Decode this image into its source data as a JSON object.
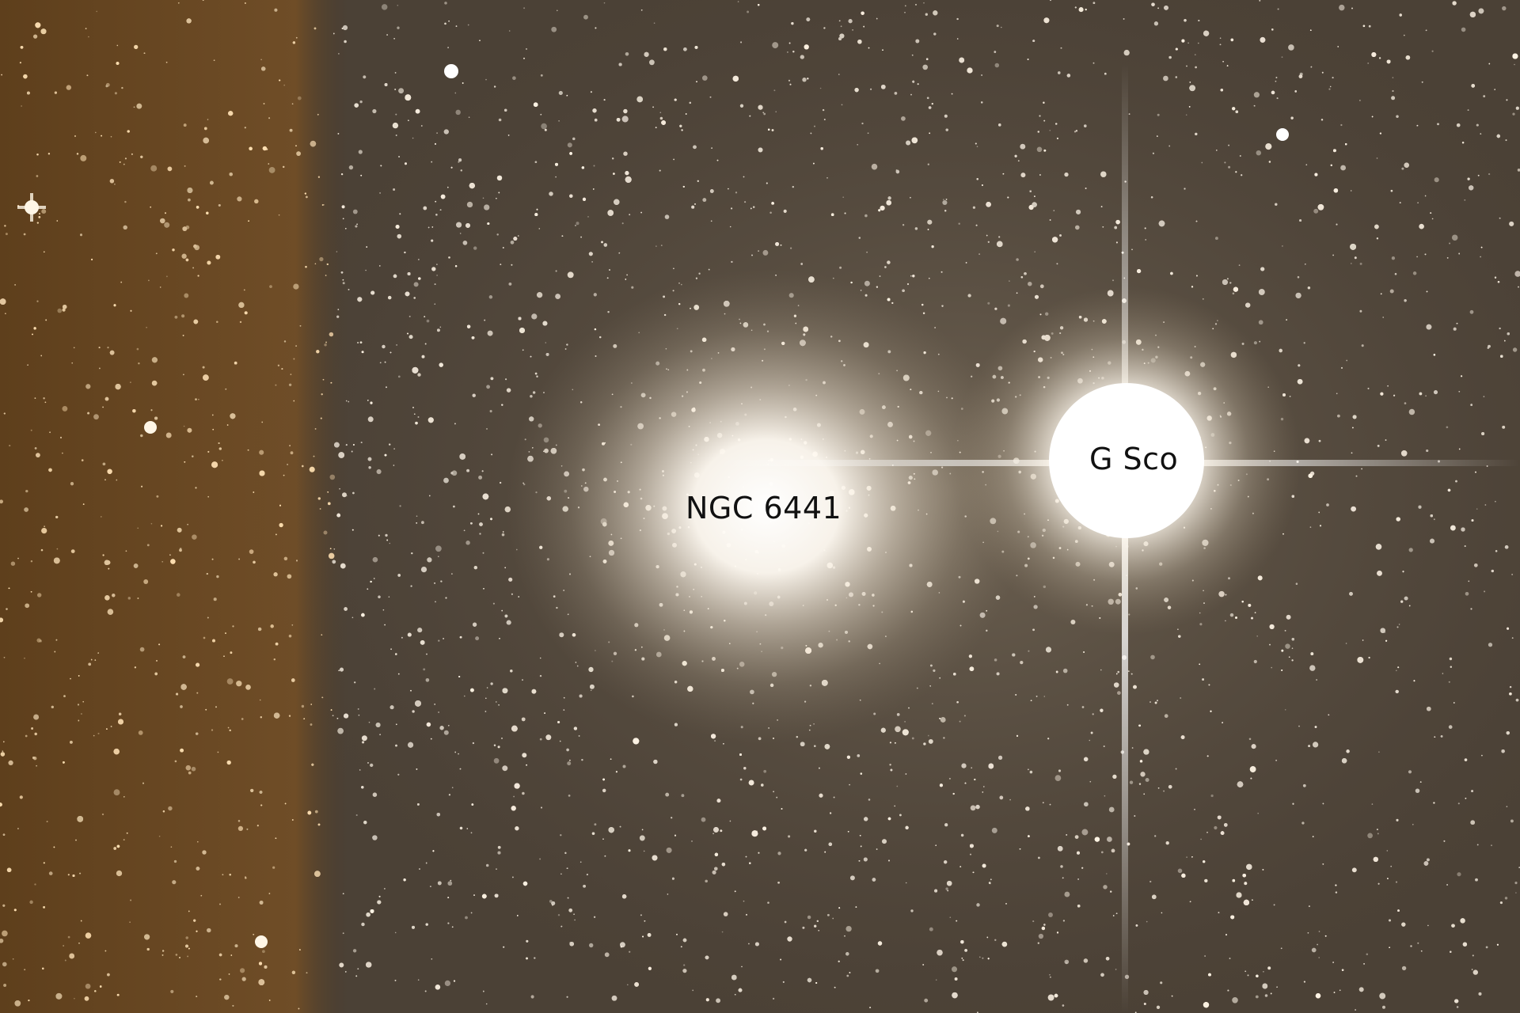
{
  "labels": {
    "cluster": "NGC 6441",
    "star": "G Sco"
  },
  "colors": {
    "sky_dark": "#2a2219",
    "sky_brown": "#6b4a26",
    "sky_grey": "#4a4035",
    "glow": "#fffaf0",
    "label_text": "#111111"
  }
}
